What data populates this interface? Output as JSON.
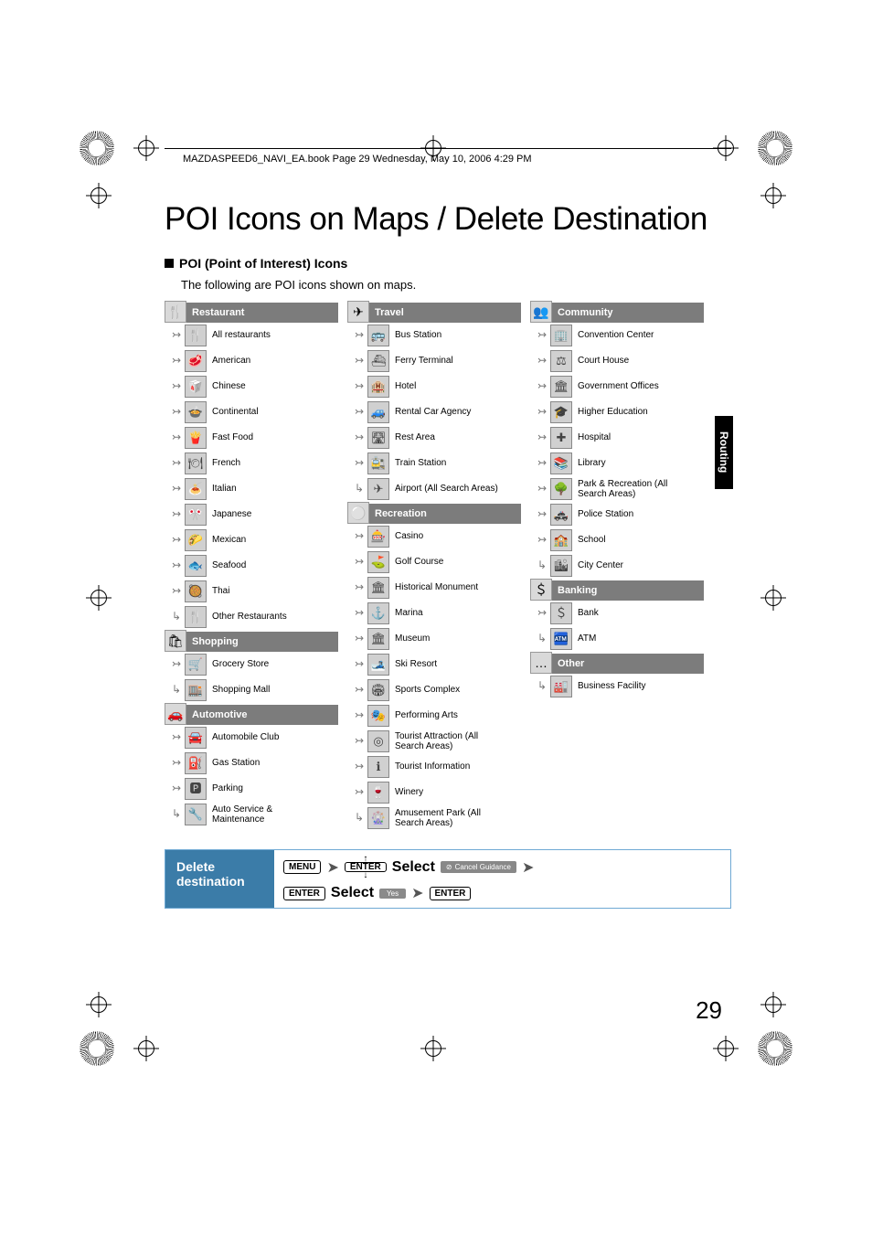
{
  "runhead": "MAZDASPEED6_NAVI_EA.book  Page 29  Wednesday, May 10, 2006  4:29 PM",
  "title": "POI Icons on Maps / Delete Destination",
  "section_heading": "POI (Point of Interest) Icons",
  "intro": "The following are POI icons shown on maps.",
  "side_tab": "Routing",
  "page_number": "29",
  "columns": [
    {
      "groups": [
        {
          "header": "Restaurant",
          "header_icon": "🍴",
          "items": [
            {
              "label": "All restaurants",
              "glyph": "🍴"
            },
            {
              "label": "American",
              "glyph": "🥩"
            },
            {
              "label": "Chinese",
              "glyph": "🥡"
            },
            {
              "label": "Continental",
              "glyph": "🍲"
            },
            {
              "label": "Fast Food",
              "glyph": "🍟"
            },
            {
              "label": "French",
              "glyph": "🍽"
            },
            {
              "label": "Italian",
              "glyph": "🍝"
            },
            {
              "label": "Japanese",
              "glyph": "🎌"
            },
            {
              "label": "Mexican",
              "glyph": "🌮"
            },
            {
              "label": "Seafood",
              "glyph": "🐟"
            },
            {
              "label": "Thai",
              "glyph": "🥘"
            },
            {
              "label": "Other Restaurants",
              "glyph": "🍴"
            }
          ]
        },
        {
          "header": "Shopping",
          "header_icon": "🛍",
          "items": [
            {
              "label": "Grocery Store",
              "glyph": "🛒"
            },
            {
              "label": "Shopping Mall",
              "glyph": "🏬"
            }
          ]
        },
        {
          "header": "Automotive",
          "header_icon": "🚗",
          "items": [
            {
              "label": "Automobile Club",
              "glyph": "🚘"
            },
            {
              "label": "Gas Station",
              "glyph": "⛽"
            },
            {
              "label": "Parking",
              "glyph": "🅿"
            },
            {
              "label": "Auto Service & Maintenance",
              "glyph": "🔧"
            }
          ]
        }
      ]
    },
    {
      "groups": [
        {
          "header": "Travel",
          "header_icon": "✈",
          "items": [
            {
              "label": "Bus Station",
              "glyph": "🚌"
            },
            {
              "label": "Ferry Terminal",
              "glyph": "⛴"
            },
            {
              "label": "Hotel",
              "glyph": "🏨"
            },
            {
              "label": "Rental Car Agency",
              "glyph": "🚙"
            },
            {
              "label": "Rest Area",
              "glyph": "🛣"
            },
            {
              "label": "Train Station",
              "glyph": "🚉"
            },
            {
              "label": "Airport (All Search Areas)",
              "glyph": "✈"
            }
          ]
        },
        {
          "header": "Recreation",
          "header_icon": "⚪",
          "items": [
            {
              "label": "Casino",
              "glyph": "🎰"
            },
            {
              "label": "Golf Course",
              "glyph": "⛳"
            },
            {
              "label": "Historical Monument",
              "glyph": "🏛"
            },
            {
              "label": "Marina",
              "glyph": "⚓"
            },
            {
              "label": "Museum",
              "glyph": "🏛"
            },
            {
              "label": "Ski Resort",
              "glyph": "🎿"
            },
            {
              "label": "Sports Complex",
              "glyph": "🏟"
            },
            {
              "label": "Performing Arts",
              "glyph": "🎭"
            },
            {
              "label": "Tourist Attraction (All Search Areas)",
              "glyph": "◎"
            },
            {
              "label": "Tourist Information",
              "glyph": "ℹ"
            },
            {
              "label": "Winery",
              "glyph": "🍷"
            },
            {
              "label": "Amusement Park (All Search Areas)",
              "glyph": "🎡"
            }
          ]
        }
      ]
    },
    {
      "groups": [
        {
          "header": "Community",
          "header_icon": "👥",
          "items": [
            {
              "label": "Convention Center",
              "glyph": "🏢"
            },
            {
              "label": "Court House",
              "glyph": "⚖"
            },
            {
              "label": "Government Offices",
              "glyph": "🏛"
            },
            {
              "label": "Higher Education",
              "glyph": "🎓"
            },
            {
              "label": "Hospital",
              "glyph": "✚"
            },
            {
              "label": "Library",
              "glyph": "📚"
            },
            {
              "label": "Park & Recreation (All Search Areas)",
              "glyph": "🌳"
            },
            {
              "label": "Police Station",
              "glyph": "🚓"
            },
            {
              "label": "School",
              "glyph": "🏫"
            },
            {
              "label": "City Center",
              "glyph": "🏙"
            }
          ]
        },
        {
          "header": "Banking",
          "header_icon": "＄",
          "items": [
            {
              "label": "Bank",
              "glyph": "＄"
            },
            {
              "label": "ATM",
              "glyph": "🏧"
            }
          ]
        },
        {
          "header": "Other",
          "header_icon": "…",
          "items": [
            {
              "label": "Business Facility",
              "glyph": "🏭"
            }
          ]
        }
      ]
    }
  ],
  "delete": {
    "label_line1": "Delete",
    "label_line2": "destination",
    "menu": "MENU",
    "enter": "ENTER",
    "select": "Select",
    "cancel_guidance": "Cancel Guidance",
    "yes": "Yes"
  }
}
